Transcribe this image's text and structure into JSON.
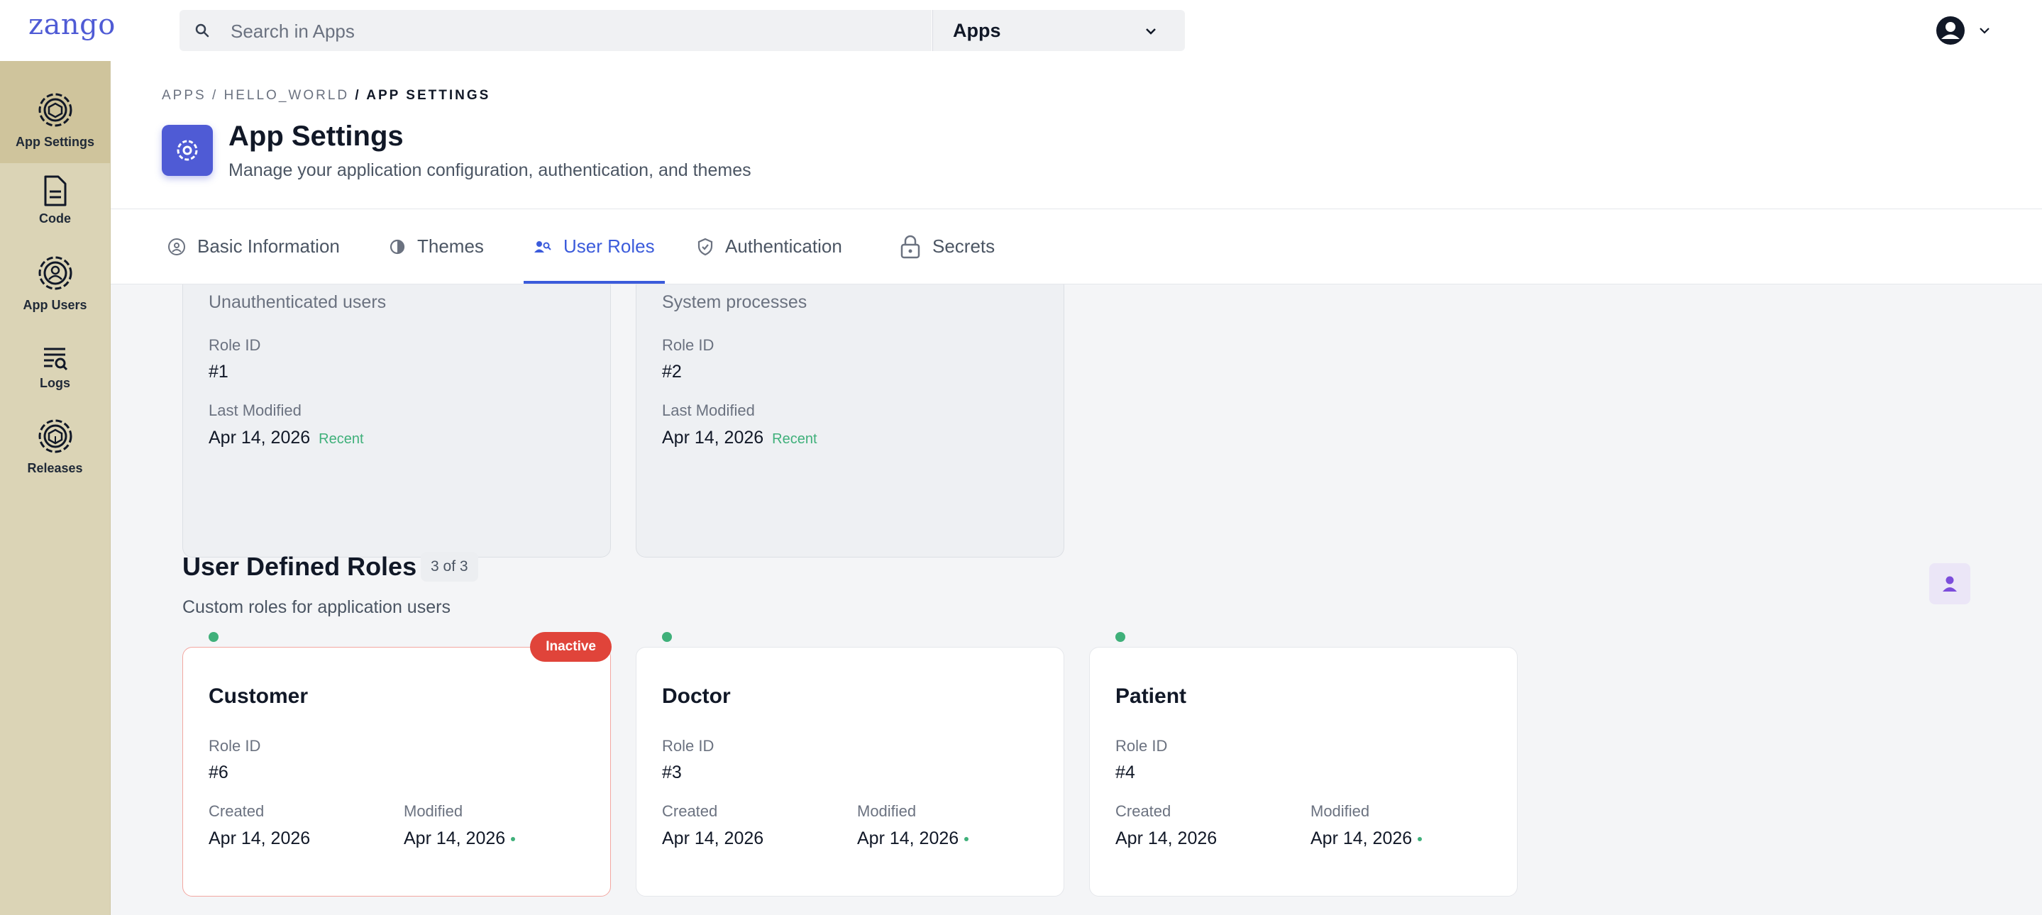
{
  "brand": {
    "logo": "zango"
  },
  "search": {
    "placeholder": "Search in Apps"
  },
  "app_selector": {
    "value": "Apps"
  },
  "sidebar": {
    "items": [
      {
        "label": "App Settings",
        "icon": "gear-icon"
      },
      {
        "label": "Code",
        "icon": "file-icon"
      },
      {
        "label": "App Users",
        "icon": "users-icon"
      },
      {
        "label": "Logs",
        "icon": "logs-icon"
      },
      {
        "label": "Releases",
        "icon": "package-icon"
      }
    ]
  },
  "breadcrumb": {
    "part1": "APPS /",
    "part2": "HELLO_WORLD",
    "part3": "/ APP SETTINGS"
  },
  "page": {
    "title": "App Settings",
    "subtitle": "Manage your application configuration, authentication, and themes"
  },
  "tabs": [
    {
      "label": "Basic Information",
      "icon": "info-circle-icon"
    },
    {
      "label": "Themes",
      "icon": "palette-icon"
    },
    {
      "label": "User Roles",
      "icon": "user-roles-icon",
      "active": true
    },
    {
      "label": "Authentication",
      "icon": "shield-icon"
    },
    {
      "label": "Secrets",
      "icon": "lock-icon"
    }
  ],
  "system_roles": [
    {
      "description": "Unauthenticated users",
      "role_id_label": "Role ID",
      "role_id": "#1",
      "modified_label": "Last Modified",
      "modified": "Apr 14, 2026",
      "recent": "Recent"
    },
    {
      "description": "System processes",
      "role_id_label": "Role ID",
      "role_id": "#2",
      "modified_label": "Last Modified",
      "modified": "Apr 14, 2026",
      "recent": "Recent"
    }
  ],
  "user_defined": {
    "title": "User Defined Roles",
    "count": "3 of 3",
    "subtitle": "Custom roles for application users",
    "roles": [
      {
        "name": "Customer",
        "badge": "Inactive",
        "role_id_label": "Role ID",
        "role_id": "#6",
        "created_label": "Created",
        "created": "Apr 14, 2026",
        "modified_label": "Modified",
        "modified": "Apr 14, 2026"
      },
      {
        "name": "Doctor",
        "role_id_label": "Role ID",
        "role_id": "#3",
        "created_label": "Created",
        "created": "Apr 14, 2026",
        "modified_label": "Modified",
        "modified": "Apr 14, 2026"
      },
      {
        "name": "Patient",
        "role_id_label": "Role ID",
        "role_id": "#4",
        "created_label": "Created",
        "created": "Apr 14, 2026",
        "modified_label": "Modified",
        "modified": "Apr 14, 2026"
      }
    ]
  },
  "colors": {
    "accent": "#3b5bdb",
    "brand": "#4f5bd5",
    "sidebar": "#dbd4b6",
    "inactive": "#e0443a",
    "success": "#3fb07a"
  }
}
